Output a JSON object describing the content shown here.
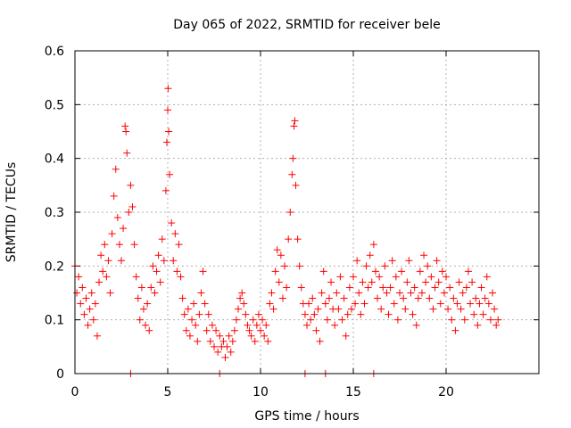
{
  "chart_data": {
    "type": "scatter",
    "title": "Day 065 of 2022, SRMTID for receiver bele",
    "xlabel": "GPS time / hours",
    "ylabel": "SRMTID / TECUs",
    "xlim": [
      0,
      25
    ],
    "ylim": [
      0,
      0.6
    ],
    "xticks": [
      0,
      5,
      10,
      15,
      20
    ],
    "xtick_labels": [
      "0",
      "5",
      "10",
      "15",
      "20"
    ],
    "yticks": [
      0,
      0.1,
      0.2,
      0.3,
      0.4,
      0.5,
      0.6
    ],
    "ytick_labels": [
      "0",
      "0.1",
      "0.2",
      "0.3",
      "0.4",
      "0.5",
      "0.6"
    ],
    "grid": true,
    "marker": "+",
    "color": "#ff0000",
    "series": [
      {
        "name": "SRMTID",
        "points": [
          [
            0.0,
            0.2
          ],
          [
            0.1,
            0.15
          ],
          [
            0.2,
            0.18
          ],
          [
            0.3,
            0.13
          ],
          [
            0.4,
            0.16
          ],
          [
            0.5,
            0.11
          ],
          [
            0.6,
            0.14
          ],
          [
            0.7,
            0.09
          ],
          [
            0.8,
            0.12
          ],
          [
            0.9,
            0.15
          ],
          [
            1.0,
            0.1
          ],
          [
            1.1,
            0.13
          ],
          [
            1.2,
            0.07
          ],
          [
            1.3,
            0.17
          ],
          [
            1.4,
            0.22
          ],
          [
            1.5,
            0.19
          ],
          [
            1.6,
            0.24
          ],
          [
            1.7,
            0.18
          ],
          [
            1.8,
            0.21
          ],
          [
            1.9,
            0.15
          ],
          [
            2.0,
            0.26
          ],
          [
            2.1,
            0.33
          ],
          [
            2.2,
            0.38
          ],
          [
            2.3,
            0.29
          ],
          [
            2.4,
            0.24
          ],
          [
            2.5,
            0.21
          ],
          [
            2.6,
            0.27
          ],
          [
            2.7,
            0.46
          ],
          [
            2.75,
            0.45
          ],
          [
            2.8,
            0.41
          ],
          [
            2.9,
            0.3
          ],
          [
            3.0,
            0.35
          ],
          [
            3.1,
            0.31
          ],
          [
            3.2,
            0.24
          ],
          [
            3.3,
            0.18
          ],
          [
            3.4,
            0.14
          ],
          [
            3.5,
            0.1
          ],
          [
            3.6,
            0.16
          ],
          [
            3.7,
            0.12
          ],
          [
            3.8,
            0.09
          ],
          [
            3.9,
            0.13
          ],
          [
            4.0,
            0.08
          ],
          [
            4.1,
            0.16
          ],
          [
            4.2,
            0.2
          ],
          [
            4.3,
            0.15
          ],
          [
            4.4,
            0.19
          ],
          [
            4.5,
            0.22
          ],
          [
            4.6,
            0.17
          ],
          [
            4.7,
            0.25
          ],
          [
            4.8,
            0.21
          ],
          [
            4.9,
            0.34
          ],
          [
            4.95,
            0.43
          ],
          [
            5.0,
            0.49
          ],
          [
            5.02,
            0.53
          ],
          [
            5.05,
            0.45
          ],
          [
            5.1,
            0.37
          ],
          [
            5.2,
            0.28
          ],
          [
            5.3,
            0.21
          ],
          [
            5.4,
            0.26
          ],
          [
            5.5,
            0.19
          ],
          [
            5.6,
            0.24
          ],
          [
            5.7,
            0.18
          ],
          [
            5.8,
            0.14
          ],
          [
            5.9,
            0.11
          ],
          [
            6.0,
            0.08
          ],
          [
            6.1,
            0.12
          ],
          [
            6.2,
            0.07
          ],
          [
            6.3,
            0.1
          ],
          [
            6.4,
            0.13
          ],
          [
            6.5,
            0.09
          ],
          [
            6.6,
            0.06
          ],
          [
            6.7,
            0.11
          ],
          [
            6.8,
            0.15
          ],
          [
            6.9,
            0.19
          ],
          [
            7.0,
            0.13
          ],
          [
            7.1,
            0.08
          ],
          [
            7.2,
            0.11
          ],
          [
            7.3,
            0.06
          ],
          [
            7.4,
            0.09
          ],
          [
            7.5,
            0.05
          ],
          [
            7.6,
            0.08
          ],
          [
            7.7,
            0.04
          ],
          [
            7.8,
            0.07
          ],
          [
            7.9,
            0.05
          ],
          [
            8.0,
            0.06
          ],
          [
            8.1,
            0.03
          ],
          [
            8.2,
            0.05
          ],
          [
            8.3,
            0.07
          ],
          [
            8.4,
            0.04
          ],
          [
            8.5,
            0.06
          ],
          [
            8.6,
            0.08
          ],
          [
            8.7,
            0.1
          ],
          [
            8.8,
            0.12
          ],
          [
            8.9,
            0.14
          ],
          [
            9.0,
            0.15
          ],
          [
            9.1,
            0.13
          ],
          [
            9.2,
            0.11
          ],
          [
            9.3,
            0.09
          ],
          [
            9.4,
            0.08
          ],
          [
            9.5,
            0.07
          ],
          [
            9.6,
            0.1
          ],
          [
            9.7,
            0.06
          ],
          [
            9.8,
            0.09
          ],
          [
            9.9,
            0.11
          ],
          [
            10.0,
            0.08
          ],
          [
            10.1,
            0.1
          ],
          [
            10.2,
            0.07
          ],
          [
            10.3,
            0.09
          ],
          [
            10.4,
            0.06
          ],
          [
            10.5,
            0.13
          ],
          [
            10.6,
            0.15
          ],
          [
            10.7,
            0.12
          ],
          [
            10.8,
            0.19
          ],
          [
            10.9,
            0.23
          ],
          [
            11.0,
            0.17
          ],
          [
            11.1,
            0.22
          ],
          [
            11.2,
            0.14
          ],
          [
            11.3,
            0.2
          ],
          [
            11.4,
            0.16
          ],
          [
            11.5,
            0.25
          ],
          [
            11.6,
            0.3
          ],
          [
            11.7,
            0.37
          ],
          [
            11.75,
            0.4
          ],
          [
            11.8,
            0.46
          ],
          [
            11.85,
            0.47
          ],
          [
            11.9,
            0.35
          ],
          [
            12.0,
            0.25
          ],
          [
            12.1,
            0.2
          ],
          [
            12.2,
            0.16
          ],
          [
            12.3,
            0.13
          ],
          [
            12.4,
            0.11
          ],
          [
            12.5,
            0.09
          ],
          [
            12.6,
            0.13
          ],
          [
            12.7,
            0.1
          ],
          [
            12.8,
            0.14
          ],
          [
            12.9,
            0.11
          ],
          [
            13.0,
            0.08
          ],
          [
            13.1,
            0.12
          ],
          [
            13.2,
            0.06
          ],
          [
            13.3,
            0.15
          ],
          [
            13.4,
            0.19
          ],
          [
            13.5,
            0.13
          ],
          [
            13.6,
            0.1
          ],
          [
            13.7,
            0.14
          ],
          [
            13.8,
            0.17
          ],
          [
            13.9,
            0.12
          ],
          [
            14.0,
            0.09
          ],
          [
            14.1,
            0.15
          ],
          [
            14.2,
            0.12
          ],
          [
            14.3,
            0.18
          ],
          [
            14.4,
            0.1
          ],
          [
            14.5,
            0.14
          ],
          [
            14.6,
            0.07
          ],
          [
            14.7,
            0.11
          ],
          [
            14.8,
            0.16
          ],
          [
            14.9,
            0.12
          ],
          [
            15.0,
            0.18
          ],
          [
            15.1,
            0.13
          ],
          [
            15.2,
            0.21
          ],
          [
            15.3,
            0.15
          ],
          [
            15.4,
            0.11
          ],
          [
            15.5,
            0.17
          ],
          [
            15.6,
            0.13
          ],
          [
            15.7,
            0.2
          ],
          [
            15.8,
            0.16
          ],
          [
            15.9,
            0.22
          ],
          [
            16.0,
            0.17
          ],
          [
            16.1,
            0.24
          ],
          [
            16.2,
            0.19
          ],
          [
            16.3,
            0.14
          ],
          [
            16.4,
            0.18
          ],
          [
            16.5,
            0.12
          ],
          [
            16.6,
            0.16
          ],
          [
            16.7,
            0.2
          ],
          [
            16.8,
            0.15
          ],
          [
            16.9,
            0.11
          ],
          [
            17.0,
            0.16
          ],
          [
            17.1,
            0.21
          ],
          [
            17.2,
            0.13
          ],
          [
            17.3,
            0.18
          ],
          [
            17.4,
            0.1
          ],
          [
            17.5,
            0.15
          ],
          [
            17.6,
            0.19
          ],
          [
            17.7,
            0.14
          ],
          [
            17.8,
            0.12
          ],
          [
            17.9,
            0.17
          ],
          [
            18.0,
            0.21
          ],
          [
            18.1,
            0.15
          ],
          [
            18.2,
            0.11
          ],
          [
            18.3,
            0.16
          ],
          [
            18.4,
            0.09
          ],
          [
            18.5,
            0.14
          ],
          [
            18.6,
            0.19
          ],
          [
            18.7,
            0.15
          ],
          [
            18.8,
            0.22
          ],
          [
            18.9,
            0.17
          ],
          [
            19.0,
            0.2
          ],
          [
            19.1,
            0.14
          ],
          [
            19.2,
            0.18
          ],
          [
            19.3,
            0.12
          ],
          [
            19.4,
            0.16
          ],
          [
            19.5,
            0.21
          ],
          [
            19.6,
            0.17
          ],
          [
            19.7,
            0.13
          ],
          [
            19.8,
            0.19
          ],
          [
            19.9,
            0.15
          ],
          [
            20.0,
            0.18
          ],
          [
            20.1,
            0.12
          ],
          [
            20.2,
            0.16
          ],
          [
            20.3,
            0.1
          ],
          [
            20.4,
            0.14
          ],
          [
            20.5,
            0.08
          ],
          [
            20.6,
            0.13
          ],
          [
            20.7,
            0.17
          ],
          [
            20.8,
            0.12
          ],
          [
            20.9,
            0.15
          ],
          [
            21.0,
            0.1
          ],
          [
            21.1,
            0.16
          ],
          [
            21.2,
            0.19
          ],
          [
            21.3,
            0.13
          ],
          [
            21.4,
            0.17
          ],
          [
            21.5,
            0.11
          ],
          [
            21.6,
            0.14
          ],
          [
            21.7,
            0.09
          ],
          [
            21.8,
            0.13
          ],
          [
            21.9,
            0.16
          ],
          [
            22.0,
            0.11
          ],
          [
            22.1,
            0.14
          ],
          [
            22.2,
            0.18
          ],
          [
            22.3,
            0.13
          ],
          [
            22.4,
            0.1
          ],
          [
            22.5,
            0.15
          ],
          [
            22.6,
            0.12
          ],
          [
            22.7,
            0.09
          ],
          [
            22.8,
            0.1
          ]
        ]
      }
    ],
    "zero_markers_x": [
      3.0,
      7.8,
      12.4,
      13.5,
      16.1
    ]
  }
}
